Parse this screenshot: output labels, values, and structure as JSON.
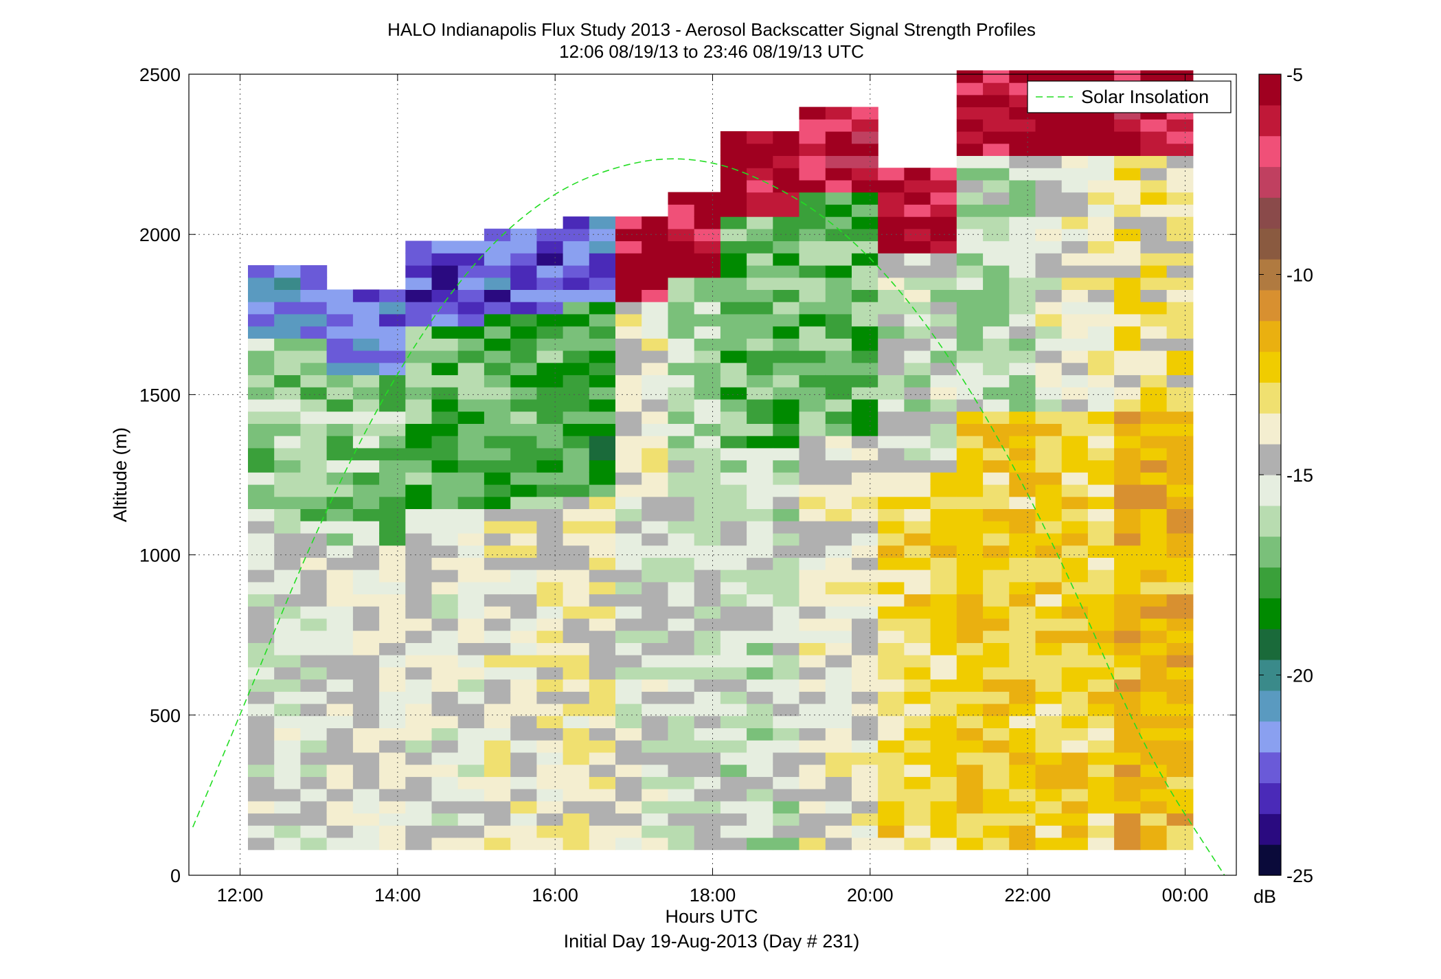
{
  "chart_data": {
    "type": "heatmap",
    "title": "HALO Indianapolis Flux Study 2013 - Aerosol Backscatter Signal Strength Profiles",
    "subtitle": "12:06 08/19/13 to 23:46 08/19/13  UTC",
    "xlabel": "Hours UTC",
    "xlabel2": "Initial Day 19-Aug-2013 (Day # 231)",
    "ylabel": "Altitude (m)",
    "xlim_hours": [
      11.35,
      24.65
    ],
    "ylim": [
      0,
      2500
    ],
    "x_ticks": [
      {
        "value": 12,
        "label": "12:00"
      },
      {
        "value": 14,
        "label": "14:00"
      },
      {
        "value": 16,
        "label": "16:00"
      },
      {
        "value": 18,
        "label": "18:00"
      },
      {
        "value": 20,
        "label": "20:00"
      },
      {
        "value": 22,
        "label": "22:00"
      },
      {
        "value": 24,
        "label": "00:00"
      }
    ],
    "y_ticks": [
      {
        "value": 0,
        "label": "0"
      },
      {
        "value": 500,
        "label": "500"
      },
      {
        "value": 1000,
        "label": "1000"
      },
      {
        "value": 1500,
        "label": "1500"
      },
      {
        "value": 2000,
        "label": "2000"
      },
      {
        "value": 2500,
        "label": "2500"
      }
    ],
    "grid": true,
    "colorbar": {
      "unit": "dB",
      "range": [
        -25,
        -5
      ],
      "ticks": [
        {
          "value": -5,
          "label": "-5"
        },
        {
          "value": -10,
          "label": "-10"
        },
        {
          "value": -15,
          "label": "-15"
        },
        {
          "value": -20,
          "label": "-20"
        },
        {
          "value": -25,
          "label": "-25"
        }
      ],
      "colors": [
        "#0a0a3a",
        "#2a0a80",
        "#4a2ab8",
        "#6a5ad8",
        "#8aa0f0",
        "#5a9ac0",
        "#3a8a8a",
        "#1a6a3a",
        "#008a00",
        "#3aa03a",
        "#7ac07a",
        "#b8dcb0",
        "#e6eee0",
        "#b0b0b0",
        "#f4eed0",
        "#f0e070",
        "#f0cc00",
        "#eab010",
        "#d89030",
        "#b07a40",
        "#8a5a40",
        "#8a4a4a",
        "#c04060",
        "#f05078",
        "#c01838",
        "#a00020"
      ]
    },
    "legend": {
      "entries": [
        "Solar Insolation"
      ],
      "placement": "top-right"
    },
    "time_bin_hours": 0.3333,
    "altitude_bin_m": 38,
    "profiles": [
      {
        "start_hour": 12.1,
        "top_m": 1900,
        "lower_dB": -15.2,
        "upper_dB": -16.5,
        "cap_dB": -21.5
      },
      {
        "start_hour": 13.0,
        "top_m": 1800,
        "lower_dB": -14.5,
        "upper_dB": -16.8,
        "cap_dB": -22
      },
      {
        "start_hour": 14.0,
        "top_m": 1960,
        "lower_dB": -14.8,
        "upper_dB": -17.2,
        "cap_dB": -22.5
      },
      {
        "start_hour": 15.0,
        "top_m": 2000,
        "lower_dB": -14.2,
        "upper_dB": -17.5,
        "cap_dB": -22.5
      },
      {
        "start_hour": 16.0,
        "top_m": 2020,
        "lower_dB": -14.0,
        "upper_dB": -17.8,
        "cap_dB": -22
      },
      {
        "start_hour": 16.7,
        "top_m": 2030,
        "lower_dB": -15.0,
        "upper_dB": -14.0,
        "cap_dB": -5.5
      },
      {
        "start_hour": 17.3,
        "top_m": 2100,
        "lower_dB": -15.3,
        "upper_dB": -16.0,
        "cap_dB": -6
      },
      {
        "start_hour": 18.0,
        "top_m": 2300,
        "lower_dB": -15.6,
        "upper_dB": -17.2,
        "cap_dB": -5.5
      },
      {
        "start_hour": 19.0,
        "top_m": 2380,
        "lower_dB": -14.3,
        "upper_dB": -17.0,
        "cap_dB": -6
      },
      {
        "start_hour": 20.0,
        "top_m": 2200,
        "lower_dB": -12.8,
        "upper_dB": -15.5,
        "cap_dB": -5.5
      },
      {
        "start_hour": 21.0,
        "top_m": 2500,
        "lower_dB": -12.4,
        "upper_dB": -16.0,
        "cap_dB": -5.5
      },
      {
        "start_hour": 22.0,
        "top_m": 2500,
        "lower_dB": -12.6,
        "upper_dB": -14.5,
        "cap_dB": -5.5
      },
      {
        "start_hour": 23.0,
        "top_m": 2500,
        "lower_dB": -11.8,
        "upper_dB": -13.5,
        "cap_dB": -6
      }
    ],
    "insolation_curve": {
      "peak_hour": 17.75,
      "peak_m": 2240,
      "points": [
        {
          "hour": 11.4,
          "m": 150
        },
        {
          "hour": 12.0,
          "m": 500
        },
        {
          "hour": 13.0,
          "m": 1100
        },
        {
          "hour": 14.0,
          "m": 1580
        },
        {
          "hour": 15.0,
          "m": 1930
        },
        {
          "hour": 16.0,
          "m": 2140
        },
        {
          "hour": 17.0,
          "m": 2230
        },
        {
          "hour": 17.75,
          "m": 2240
        },
        {
          "hour": 18.5,
          "m": 2190
        },
        {
          "hour": 19.5,
          "m": 2050
        },
        {
          "hour": 20.5,
          "m": 1800
        },
        {
          "hour": 21.5,
          "m": 1430
        },
        {
          "hour": 22.5,
          "m": 950
        },
        {
          "hour": 23.5,
          "m": 380
        },
        {
          "hour": 24.5,
          "m": 0
        }
      ]
    }
  }
}
